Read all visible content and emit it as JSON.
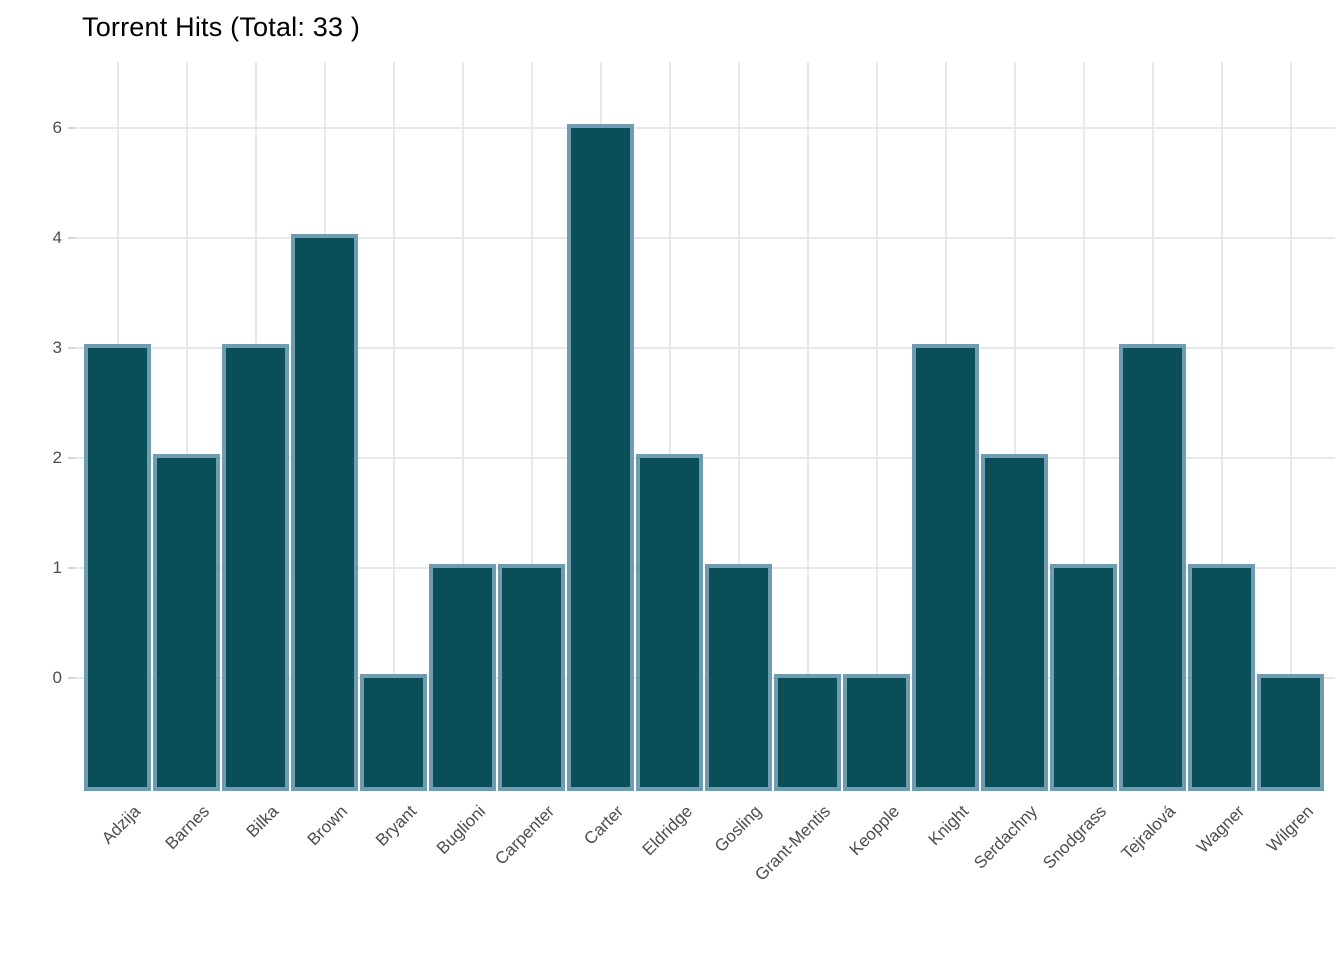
{
  "chart_data": {
    "type": "bar",
    "title": "Torrent Hits (Total: 33 )",
    "categories": [
      "Adzija",
      "Barnes",
      "Bilka",
      "Brown",
      "Bryant",
      "Buglioni",
      "Carpenter",
      "Carter",
      "Eldridge",
      "Gosling",
      "Grant-Mentis",
      "Keopple",
      "Knight",
      "Serdachny",
      "Snodgrass",
      "Tejralová",
      "Wagner",
      "Wilgren"
    ],
    "values": [
      3,
      2,
      3,
      4,
      0,
      1,
      1,
      6,
      2,
      1,
      0,
      0,
      3,
      2,
      1,
      3,
      1,
      0
    ],
    "total": 33,
    "xlabel": "",
    "ylabel": "",
    "y_tick_labels": [
      "6",
      "4",
      "3",
      "2",
      "1",
      "0"
    ],
    "y_tick_values": [
      6,
      4,
      3,
      2,
      1,
      0
    ],
    "y_scale_note": "distinct values evenly spaced (ordinal); bars extend one step below the 0 line",
    "grid": true,
    "legend": "none",
    "colors": {
      "bar_fill": "#0a4e58",
      "bar_border": "#6f9cb1",
      "gridline": "#e8e8e8",
      "tick_mark": "#d6d6d6",
      "axis_text": "#4d4d4d",
      "title_text": "#000000",
      "background": "#ffffff"
    }
  }
}
